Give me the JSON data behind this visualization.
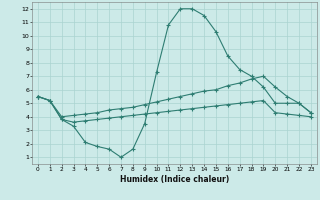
{
  "xlabel": "Humidex (Indice chaleur)",
  "background_color": "#cceae8",
  "line_color": "#2e7d72",
  "grid_color": "#aad4d0",
  "xlim": [
    -0.5,
    23.5
  ],
  "ylim": [
    0.5,
    12.5
  ],
  "xticks": [
    0,
    1,
    2,
    3,
    4,
    5,
    6,
    7,
    8,
    9,
    10,
    11,
    12,
    13,
    14,
    15,
    16,
    17,
    18,
    19,
    20,
    21,
    22,
    23
  ],
  "yticks": [
    1,
    2,
    3,
    4,
    5,
    6,
    7,
    8,
    9,
    10,
    11,
    12
  ],
  "series1_x": [
    0,
    1,
    2,
    3,
    4,
    5,
    6,
    7,
    8,
    9,
    10,
    11,
    12,
    13,
    14,
    15,
    16,
    17,
    18,
    19,
    20,
    21,
    22,
    23
  ],
  "series1_y": [
    5.5,
    5.2,
    3.8,
    3.3,
    2.1,
    1.8,
    1.6,
    1.0,
    1.6,
    3.5,
    7.3,
    10.8,
    12.0,
    12.0,
    11.5,
    10.3,
    8.5,
    7.5,
    7.0,
    6.2,
    5.0,
    5.0,
    5.0,
    4.3
  ],
  "series2_x": [
    0,
    1,
    2,
    3,
    4,
    5,
    6,
    7,
    8,
    9,
    10,
    11,
    12,
    13,
    14,
    15,
    16,
    17,
    18,
    19,
    20,
    21,
    22,
    23
  ],
  "series2_y": [
    5.5,
    5.2,
    4.0,
    4.1,
    4.2,
    4.3,
    4.5,
    4.6,
    4.7,
    4.9,
    5.1,
    5.3,
    5.5,
    5.7,
    5.9,
    6.0,
    6.3,
    6.5,
    6.8,
    7.0,
    6.2,
    5.5,
    5.0,
    4.3
  ],
  "series3_x": [
    0,
    1,
    2,
    3,
    4,
    5,
    6,
    7,
    8,
    9,
    10,
    11,
    12,
    13,
    14,
    15,
    16,
    17,
    18,
    19,
    20,
    21,
    22,
    23
  ],
  "series3_y": [
    5.5,
    5.2,
    3.8,
    3.6,
    3.7,
    3.8,
    3.9,
    4.0,
    4.1,
    4.2,
    4.3,
    4.4,
    4.5,
    4.6,
    4.7,
    4.8,
    4.9,
    5.0,
    5.1,
    5.2,
    4.3,
    4.2,
    4.1,
    4.0
  ]
}
